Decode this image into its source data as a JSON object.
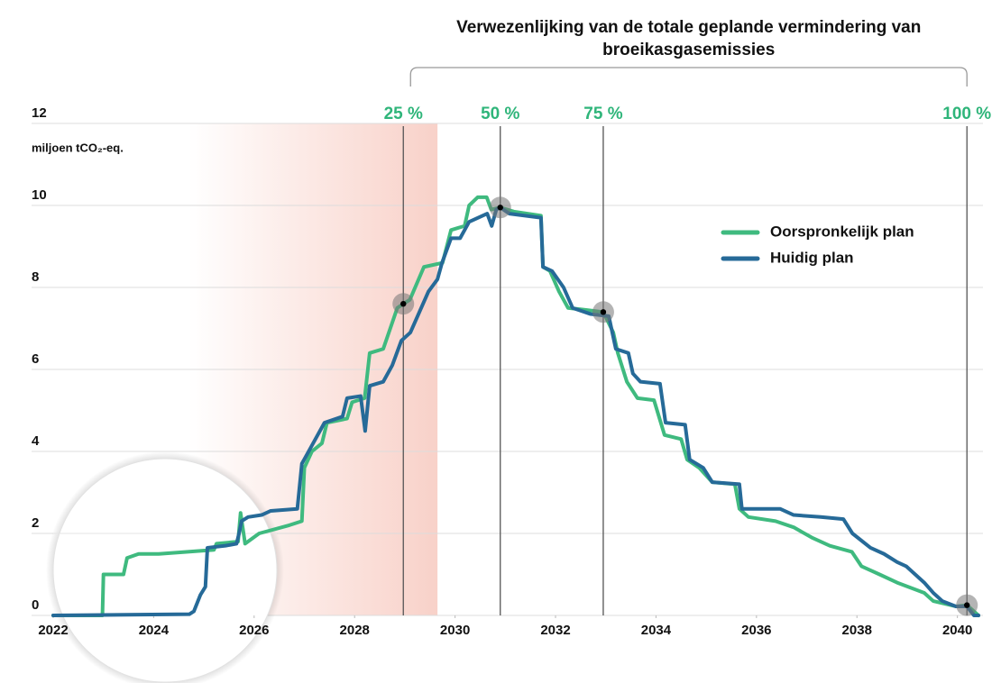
{
  "chart_data": {
    "type": "line",
    "bracket_title": "Verwezenlijking van de totale geplande vermindering van broeikasgasemissies",
    "y_label": "miljoen tCO₂-eq.",
    "xlim": [
      2022,
      2040.5
    ],
    "ylim": [
      0,
      12
    ],
    "xticks": [
      2022,
      2024,
      2026,
      2028,
      2030,
      2032,
      2034,
      2036,
      2038,
      2040
    ],
    "yticks": [
      0,
      2,
      4,
      6,
      8,
      10,
      12
    ],
    "grid": true,
    "legend": "upper right",
    "shaded_range": [
      2024.7,
      2029.65
    ],
    "shade_color": "#f7c9bf",
    "milestone_color": "#2fb57a",
    "milestones": [
      {
        "label": "25 %",
        "x": 2028.97,
        "y": 7.6
      },
      {
        "label": "50 %",
        "x": 2030.9,
        "y": 9.95
      },
      {
        "label": "75 %",
        "x": 2032.95,
        "y": 7.4
      },
      {
        "label": "100 %",
        "x": 2040.19,
        "y": 0.25
      }
    ],
    "series": [
      {
        "name": "Oorspronkelijk plan",
        "color": "#3fba7f",
        "x": [
          2022,
          2022.98,
          2023.0,
          2023.4,
          2023.47,
          2023.7,
          2024.1,
          2025.2,
          2025.25,
          2025.68,
          2025.73,
          2025.82,
          2026.1,
          2026.7,
          2026.95,
          2027.0,
          2027.15,
          2027.35,
          2027.45,
          2027.85,
          2027.95,
          2028.2,
          2028.3,
          2028.57,
          2028.85,
          2028.97,
          2029.1,
          2029.38,
          2029.75,
          2029.92,
          2030.19,
          2030.28,
          2030.45,
          2030.63,
          2030.72,
          2030.9,
          2031.17,
          2031.71,
          2031.75,
          2031.89,
          2032.07,
          2032.25,
          2032.61,
          2032.95,
          2033.15,
          2033.24,
          2033.42,
          2033.63,
          2033.96,
          2034.17,
          2034.5,
          2034.62,
          2034.86,
          2035.12,
          2035.57,
          2035.66,
          2035.84,
          2036.38,
          2036.74,
          2037.1,
          2037.46,
          2037.9,
          2038.09,
          2038.45,
          2038.8,
          2039.34,
          2039.52,
          2039.97,
          2040.19,
          2040.42
        ],
        "values": [
          0,
          0,
          1.0,
          1.0,
          1.4,
          1.5,
          1.5,
          1.6,
          1.75,
          1.8,
          2.5,
          1.75,
          2.0,
          2.2,
          2.3,
          3.6,
          4.0,
          4.2,
          4.7,
          4.8,
          5.2,
          5.3,
          6.4,
          6.5,
          7.5,
          7.6,
          7.7,
          8.5,
          8.6,
          9.4,
          9.5,
          10.0,
          10.2,
          10.2,
          9.9,
          9.95,
          9.85,
          9.75,
          8.5,
          8.4,
          7.9,
          7.5,
          7.45,
          7.4,
          6.9,
          6.4,
          5.7,
          5.3,
          5.25,
          4.4,
          4.3,
          3.8,
          3.6,
          3.25,
          3.2,
          2.6,
          2.4,
          2.3,
          2.15,
          1.9,
          1.7,
          1.55,
          1.2,
          1.0,
          0.8,
          0.55,
          0.35,
          0.22,
          0.25,
          0
        ]
      },
      {
        "name": "Huidig plan",
        "color": "#266a98",
        "x": [
          2022,
          2024.71,
          2024.8,
          2024.93,
          2025.03,
          2025.07,
          2025.43,
          2025.65,
          2025.7,
          2025.75,
          2025.88,
          2026.15,
          2026.33,
          2026.86,
          2026.95,
          2027.13,
          2027.4,
          2027.76,
          2027.85,
          2028.12,
          2028.21,
          2028.3,
          2028.57,
          2028.75,
          2028.93,
          2029.11,
          2029.29,
          2029.47,
          2029.65,
          2029.74,
          2029.92,
          2030.1,
          2030.28,
          2030.64,
          2030.73,
          2030.82,
          2030.9,
          2031.08,
          2031.71,
          2031.75,
          2031.93,
          2032.16,
          2032.34,
          2032.7,
          2033.06,
          2033.2,
          2033.45,
          2033.54,
          2033.69,
          2034.08,
          2034.19,
          2034.58,
          2034.67,
          2034.94,
          2035.12,
          2035.66,
          2035.71,
          2036.47,
          2036.74,
          2037.28,
          2037.73,
          2037.91,
          2038.27,
          2038.54,
          2038.8,
          2038.98,
          2039.16,
          2039.34,
          2039.52,
          2039.7,
          2039.97,
          2040.19,
          2040.33,
          2040.42
        ],
        "values": [
          0,
          0.03,
          0.1,
          0.5,
          0.7,
          1.65,
          1.7,
          1.75,
          2.0,
          2.3,
          2.4,
          2.45,
          2.55,
          2.6,
          3.7,
          4.1,
          4.7,
          4.85,
          5.3,
          5.35,
          4.5,
          5.6,
          5.7,
          6.1,
          6.7,
          6.9,
          7.4,
          7.9,
          8.2,
          8.6,
          9.2,
          9.2,
          9.6,
          9.8,
          9.5,
          9.9,
          9.95,
          9.8,
          9.7,
          8.5,
          8.4,
          8.0,
          7.5,
          7.35,
          7.3,
          6.5,
          6.4,
          5.9,
          5.7,
          5.65,
          4.7,
          4.65,
          3.8,
          3.6,
          3.25,
          3.2,
          2.6,
          2.6,
          2.45,
          2.4,
          2.35,
          2.0,
          1.65,
          1.5,
          1.3,
          1.2,
          1.0,
          0.8,
          0.55,
          0.35,
          0.22,
          0.22,
          0,
          0
        ]
      }
    ]
  }
}
